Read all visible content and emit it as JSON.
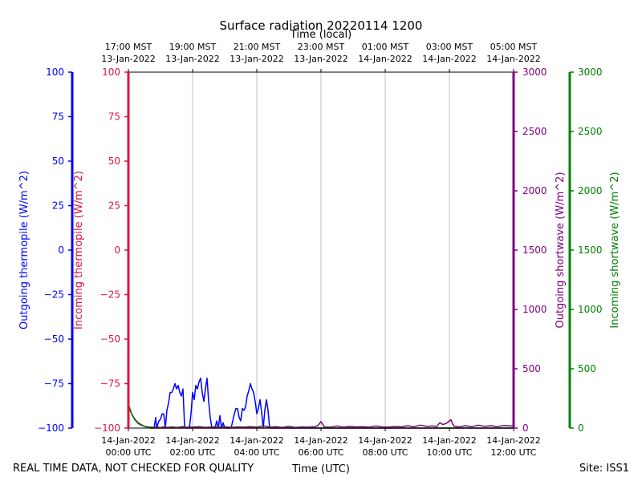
{
  "chart_data": {
    "type": "line",
    "title": "Surface radiation 20220114 1200",
    "top_axis_label": "Time (local)",
    "xlabel": "Time (UTC)",
    "footer_left": "REAL TIME DATA, NOT CHECKED FOR QUALITY",
    "footer_right": "Site: ISS1",
    "x_ticks_utc": [
      {
        "hour": 0,
        "date": "14-Jan-2022",
        "time": "00:00 UTC"
      },
      {
        "hour": 2,
        "date": "14-Jan-2022",
        "time": "02:00 UTC"
      },
      {
        "hour": 4,
        "date": "14-Jan-2022",
        "time": "04:00 UTC"
      },
      {
        "hour": 6,
        "date": "14-Jan-2022",
        "time": "06:00 UTC"
      },
      {
        "hour": 8,
        "date": "14-Jan-2022",
        "time": "08:00 UTC"
      },
      {
        "hour": 10,
        "date": "14-Jan-2022",
        "time": "10:00 UTC"
      },
      {
        "hour": 12,
        "date": "14-Jan-2022",
        "time": "12:00 UTC"
      }
    ],
    "x_ticks_local": [
      {
        "hour": 0,
        "time": "17:00 MST",
        "date": "13-Jan-2022"
      },
      {
        "hour": 2,
        "time": "19:00 MST",
        "date": "13-Jan-2022"
      },
      {
        "hour": 4,
        "time": "21:00 MST",
        "date": "13-Jan-2022"
      },
      {
        "hour": 6,
        "time": "23:00 MST",
        "date": "13-Jan-2022"
      },
      {
        "hour": 8,
        "time": "01:00 MST",
        "date": "14-Jan-2022"
      },
      {
        "hour": 10,
        "time": "03:00 MST",
        "date": "14-Jan-2022"
      },
      {
        "hour": 12,
        "time": "05:00 MST",
        "date": "14-Jan-2022"
      }
    ],
    "xlim": [
      0,
      12
    ],
    "grid": "vertical",
    "axes": {
      "outgoing_thermopile": {
        "label": "Outgoing thermopile (W/m^2)",
        "color": "#0000ff",
        "range": [
          -100,
          100
        ],
        "ticks": [
          100,
          75,
          50,
          25,
          0,
          -25,
          -50,
          -75,
          -100
        ]
      },
      "incoming_thermopile": {
        "label": "Incoming thermopile (W/m^2)",
        "color": "#dc143c",
        "range": [
          -100,
          100
        ],
        "ticks": [
          100,
          75,
          50,
          25,
          0,
          -25,
          -50,
          -75,
          -100
        ]
      },
      "outgoing_shortwave": {
        "label": "Outgoing shortwave (W/m^2)",
        "color": "#800080",
        "range": [
          0,
          3000
        ],
        "ticks": [
          0,
          500,
          1000,
          1500,
          2000,
          2500,
          3000
        ]
      },
      "incoming_shortwave": {
        "label": "Incoming shortwave (W/m^2)",
        "color": "#008000",
        "range": [
          0,
          3000
        ],
        "ticks": [
          0,
          500,
          1000,
          1500,
          2000,
          2500,
          3000
        ]
      }
    },
    "series": [
      {
        "name": "Outgoing thermopile (W/m^2)",
        "axis": "outgoing_thermopile",
        "color": "#0000ff",
        "points": [
          [
            0.0,
            -88
          ],
          [
            0.1,
            -92
          ],
          [
            0.2,
            -95
          ],
          [
            0.3,
            -97
          ],
          [
            0.4,
            -98
          ],
          [
            0.5,
            -99
          ],
          [
            0.6,
            -99.5
          ],
          [
            0.7,
            -100
          ],
          [
            0.8,
            -100
          ],
          [
            0.85,
            -94
          ],
          [
            0.88,
            -100
          ],
          [
            0.95,
            -96
          ],
          [
            1.0,
            -95
          ],
          [
            1.05,
            -92
          ],
          [
            1.1,
            -92
          ],
          [
            1.15,
            -100
          ],
          [
            1.2,
            -90
          ],
          [
            1.25,
            -86
          ],
          [
            1.3,
            -80
          ],
          [
            1.35,
            -80
          ],
          [
            1.4,
            -78
          ],
          [
            1.45,
            -75
          ],
          [
            1.5,
            -78
          ],
          [
            1.55,
            -76
          ],
          [
            1.6,
            -80
          ],
          [
            1.65,
            -82
          ],
          [
            1.7,
            -78
          ],
          [
            1.75,
            -99
          ],
          [
            1.8,
            -100
          ],
          [
            1.9,
            -100
          ],
          [
            1.95,
            -92
          ],
          [
            2.0,
            -80
          ],
          [
            2.05,
            -84
          ],
          [
            2.1,
            -76
          ],
          [
            2.15,
            -78
          ],
          [
            2.2,
            -74
          ],
          [
            2.25,
            -72
          ],
          [
            2.3,
            -80
          ],
          [
            2.35,
            -85
          ],
          [
            2.4,
            -78
          ],
          [
            2.45,
            -72
          ],
          [
            2.5,
            -85
          ],
          [
            2.55,
            -94
          ],
          [
            2.6,
            -100
          ],
          [
            2.7,
            -100
          ],
          [
            2.75,
            -96
          ],
          [
            2.8,
            -100
          ],
          [
            2.85,
            -93
          ],
          [
            2.9,
            -100
          ],
          [
            2.95,
            -97
          ],
          [
            3.0,
            -100
          ],
          [
            3.2,
            -100
          ],
          [
            3.3,
            -92
          ],
          [
            3.35,
            -89
          ],
          [
            3.4,
            -89
          ],
          [
            3.45,
            -94
          ],
          [
            3.5,
            -96
          ],
          [
            3.55,
            -89
          ],
          [
            3.6,
            -90
          ],
          [
            3.65,
            -88
          ],
          [
            3.7,
            -82
          ],
          [
            3.75,
            -79
          ],
          [
            3.8,
            -75
          ],
          [
            3.85,
            -78
          ],
          [
            3.9,
            -80
          ],
          [
            3.95,
            -85
          ],
          [
            4.0,
            -92
          ],
          [
            4.05,
            -89
          ],
          [
            4.1,
            -84
          ],
          [
            4.15,
            -91
          ],
          [
            4.2,
            -100
          ],
          [
            4.25,
            -90
          ],
          [
            4.3,
            -84
          ],
          [
            4.35,
            -90
          ],
          [
            4.4,
            -100
          ],
          [
            5.0,
            -100
          ],
          [
            8.0,
            -100
          ],
          [
            12.0,
            -100
          ]
        ]
      },
      {
        "name": "Incoming thermopile (W/m^2)",
        "axis": "incoming_thermopile",
        "color": "#dc143c",
        "points": [
          [
            0.0,
            -88
          ],
          [
            0.1,
            -92
          ],
          [
            0.2,
            -95
          ],
          [
            0.3,
            -97
          ],
          [
            0.4,
            -98
          ],
          [
            0.5,
            -99
          ],
          [
            0.6,
            -99.5
          ],
          [
            0.7,
            -100
          ],
          [
            12.0,
            -100
          ]
        ]
      },
      {
        "name": "Outgoing shortwave (W/m^2)",
        "axis": "outgoing_shortwave",
        "color": "#800080",
        "points": [
          [
            0.0,
            200
          ],
          [
            0.1,
            120
          ],
          [
            0.2,
            70
          ],
          [
            0.3,
            40
          ],
          [
            0.4,
            25
          ],
          [
            0.5,
            15
          ],
          [
            0.6,
            10
          ],
          [
            0.7,
            8
          ],
          [
            0.8,
            6
          ],
          [
            0.9,
            8
          ],
          [
            1.0,
            5
          ],
          [
            1.1,
            10
          ],
          [
            1.2,
            6
          ],
          [
            1.3,
            8
          ],
          [
            1.4,
            10
          ],
          [
            1.5,
            5
          ],
          [
            1.6,
            8
          ],
          [
            1.7,
            12
          ],
          [
            1.8,
            6
          ],
          [
            1.9,
            10
          ],
          [
            2.0,
            8
          ],
          [
            2.2,
            12
          ],
          [
            2.4,
            6
          ],
          [
            2.6,
            10
          ],
          [
            2.8,
            8
          ],
          [
            3.0,
            12
          ],
          [
            3.2,
            6
          ],
          [
            3.4,
            10
          ],
          [
            3.6,
            8
          ],
          [
            3.8,
            12
          ],
          [
            4.0,
            8
          ],
          [
            4.2,
            20
          ],
          [
            4.4,
            8
          ],
          [
            4.6,
            12
          ],
          [
            4.8,
            6
          ],
          [
            5.0,
            15
          ],
          [
            5.2,
            6
          ],
          [
            5.4,
            10
          ],
          [
            5.6,
            8
          ],
          [
            5.8,
            12
          ],
          [
            5.9,
            20
          ],
          [
            6.0,
            55
          ],
          [
            6.05,
            35
          ],
          [
            6.1,
            10
          ],
          [
            6.3,
            8
          ],
          [
            6.5,
            18
          ],
          [
            6.7,
            8
          ],
          [
            6.9,
            14
          ],
          [
            7.1,
            10
          ],
          [
            7.3,
            12
          ],
          [
            7.5,
            8
          ],
          [
            7.7,
            18
          ],
          [
            7.9,
            10
          ],
          [
            8.1,
            8
          ],
          [
            8.3,
            14
          ],
          [
            8.5,
            10
          ],
          [
            8.7,
            20
          ],
          [
            8.9,
            12
          ],
          [
            9.1,
            25
          ],
          [
            9.3,
            14
          ],
          [
            9.5,
            18
          ],
          [
            9.6,
            12
          ],
          [
            9.7,
            45
          ],
          [
            9.8,
            30
          ],
          [
            9.9,
            40
          ],
          [
            10.0,
            60
          ],
          [
            10.05,
            70
          ],
          [
            10.1,
            35
          ],
          [
            10.15,
            15
          ],
          [
            10.3,
            10
          ],
          [
            10.5,
            20
          ],
          [
            10.7,
            12
          ],
          [
            10.9,
            25
          ],
          [
            11.1,
            15
          ],
          [
            11.3,
            20
          ],
          [
            11.5,
            12
          ],
          [
            11.7,
            22
          ],
          [
            11.9,
            18
          ],
          [
            12.0,
            15
          ]
        ]
      },
      {
        "name": "Incoming shortwave (W/m^2)",
        "axis": "incoming_shortwave",
        "color": "#008000",
        "points": [
          [
            0.0,
            200
          ],
          [
            0.1,
            120
          ],
          [
            0.2,
            70
          ],
          [
            0.3,
            40
          ],
          [
            0.4,
            25
          ],
          [
            0.5,
            15
          ],
          [
            0.6,
            10
          ],
          [
            0.7,
            5
          ],
          [
            0.8,
            3
          ],
          [
            1.0,
            2
          ],
          [
            12.0,
            2
          ]
        ]
      }
    ]
  }
}
